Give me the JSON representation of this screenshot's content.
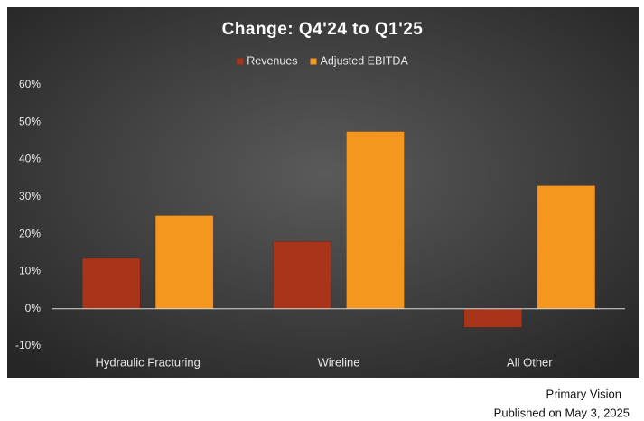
{
  "chart_data": {
    "type": "bar",
    "title": "Change: Q4'24 to Q1'25",
    "categories": [
      "Hydraulic Fracturing",
      "Wireline",
      "All Other"
    ],
    "series": [
      {
        "name": "Revenues",
        "color": "#a8341a",
        "values": [
          13.5,
          18,
          -5
        ]
      },
      {
        "name": "Adjusted EBITDA",
        "color": "#f5961e",
        "values": [
          25,
          47.5,
          33
        ]
      }
    ],
    "ylim": [
      -10,
      60
    ],
    "yticks": [
      {
        "value": -10,
        "label": "-10%"
      },
      {
        "value": 0,
        "label": "0%"
      },
      {
        "value": 10,
        "label": "10%"
      },
      {
        "value": 20,
        "label": "20%"
      },
      {
        "value": 30,
        "label": "30%"
      },
      {
        "value": 40,
        "label": "40%"
      },
      {
        "value": 50,
        "label": "50%"
      },
      {
        "value": 60,
        "label": "60%"
      }
    ],
    "legend": "top",
    "source": "Primary Vision",
    "published": "Published on May 3, 2025"
  }
}
